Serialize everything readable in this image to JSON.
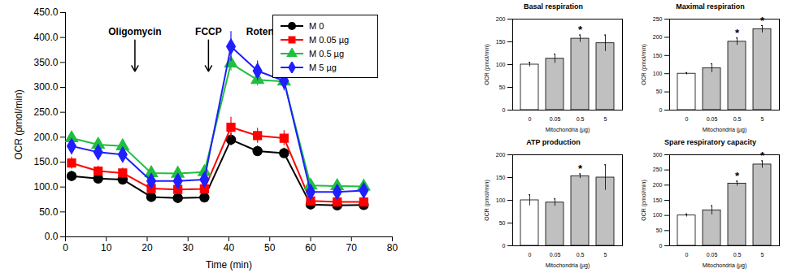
{
  "chart_data": [
    {
      "type": "line",
      "xlabel": "Time (min)",
      "ylabel": "OCR (pmol/min)",
      "x": [
        1.5,
        8,
        14,
        21,
        27.5,
        34,
        40.5,
        47,
        53.5,
        60,
        66.5,
        73
      ],
      "xlim": [
        0,
        80
      ],
      "xticks": [
        0,
        10,
        20,
        30,
        40,
        50,
        60,
        70,
        80
      ],
      "ylim": [
        0,
        450
      ],
      "yticks": [
        {
          "value": 0,
          "label": "0.0"
        },
        {
          "value": 50,
          "label": "50.0"
        },
        {
          "value": 100,
          "label": "100.0"
        },
        {
          "value": 150,
          "label": "150.0"
        },
        {
          "value": 200,
          "label": "200.0"
        },
        {
          "value": 250,
          "label": "250.0"
        },
        {
          "value": 300,
          "label": "300.0"
        },
        {
          "value": 350,
          "label": "350.0"
        },
        {
          "value": 400,
          "label": "400.0"
        },
        {
          "value": 450,
          "label": "450.0"
        }
      ],
      "legend": "top-right",
      "series": [
        {
          "name": "M 0",
          "color": "#000000",
          "marker": "circle",
          "values": [
            122,
            117,
            115,
            80,
            78,
            79,
            195,
            172,
            168,
            65,
            63,
            64
          ],
          "errors": [
            10,
            8,
            8,
            6,
            6,
            6,
            12,
            10,
            10,
            5,
            5,
            5
          ]
        },
        {
          "name": "M 0.05 µg",
          "color": "#ff0000",
          "marker": "square",
          "values": [
            148,
            132,
            128,
            97,
            95,
            96,
            220,
            203,
            198,
            72,
            70,
            70
          ],
          "errors": [
            12,
            10,
            10,
            8,
            8,
            8,
            20,
            15,
            15,
            6,
            6,
            6
          ]
        },
        {
          "name": "M 0.5 µg",
          "color": "#1fbf3f",
          "marker": "triangle",
          "values": [
            198,
            185,
            182,
            128,
            127,
            130,
            348,
            315,
            312,
            103,
            102,
            101
          ],
          "errors": [
            10,
            10,
            10,
            8,
            8,
            8,
            15,
            12,
            12,
            6,
            6,
            6
          ]
        },
        {
          "name": "M 5 µg",
          "color": "#1f1fff",
          "marker": "diamond",
          "values": [
            182,
            170,
            165,
            112,
            112,
            115,
            382,
            333,
            313,
            90,
            90,
            93
          ],
          "errors": [
            12,
            10,
            10,
            8,
            8,
            10,
            30,
            20,
            20,
            8,
            8,
            8
          ]
        }
      ],
      "annotations": [
        {
          "text": "Oligomycin",
          "x": 17,
          "y": [
            395,
            332
          ]
        },
        {
          "text": "FCCP",
          "x": 35,
          "y": [
            395,
            332
          ]
        },
        {
          "text": "Rotenone/Antimycin A",
          "x": 57,
          "y": [
            395,
            332
          ]
        }
      ]
    },
    {
      "type": "bar",
      "title": "Basal respiration",
      "xlabel": "Mitochondria (µg)",
      "ylabel": "OCR (pmol/min)",
      "categories": [
        "0",
        "0.05",
        "0.5",
        "5"
      ],
      "values": [
        100,
        113,
        157,
        147
      ],
      "errors": [
        5,
        10,
        8,
        18
      ],
      "colors": [
        "#ffffff",
        "#c0c0c0",
        "#c0c0c0",
        "#c0c0c0"
      ],
      "significance": [
        null,
        null,
        "*",
        null
      ],
      "ylim": [
        0,
        200
      ],
      "yticks": [
        0,
        50,
        100,
        150,
        200
      ]
    },
    {
      "type": "bar",
      "title": "Maximal respiration",
      "xlabel": "Mitochondria (µg)",
      "ylabel": "OCR (pmol/min)",
      "categories": [
        "0",
        "0.05",
        "0.5",
        "5"
      ],
      "values": [
        100,
        115,
        188,
        222
      ],
      "errors": [
        3,
        12,
        10,
        10
      ],
      "colors": [
        "#ffffff",
        "#c0c0c0",
        "#c0c0c0",
        "#c0c0c0"
      ],
      "significance": [
        null,
        null,
        "*",
        "*"
      ],
      "ylim": [
        0,
        250
      ],
      "yticks": [
        0,
        50,
        100,
        150,
        200,
        250
      ]
    },
    {
      "type": "bar",
      "title": "ATP production",
      "xlabel": "Mitochondria (µg)",
      "ylabel": "OCR (pmol/min)",
      "categories": [
        "0",
        "0.05",
        "0.5",
        "5"
      ],
      "values": [
        100,
        95,
        153,
        150
      ],
      "errors": [
        12,
        8,
        5,
        28
      ],
      "colors": [
        "#ffffff",
        "#c0c0c0",
        "#c0c0c0",
        "#c0c0c0"
      ],
      "significance": [
        null,
        null,
        "*",
        null
      ],
      "ylim": [
        0,
        200
      ],
      "yticks": [
        0,
        50,
        100,
        150,
        200
      ]
    },
    {
      "type": "bar",
      "title": "Spare respiratory capacity",
      "xlabel": "Mitochondria (µg)",
      "ylabel": "OCR (pmol/min)",
      "categories": [
        "0",
        "0.05",
        "0.5",
        "5"
      ],
      "values": [
        100,
        117,
        205,
        268
      ],
      "errors": [
        5,
        15,
        8,
        12
      ],
      "colors": [
        "#ffffff",
        "#c0c0c0",
        "#c0c0c0",
        "#c0c0c0"
      ],
      "significance": [
        null,
        null,
        "*",
        "*"
      ],
      "ylim": [
        0,
        300
      ],
      "yticks": [
        0,
        50,
        100,
        150,
        200,
        250,
        300
      ]
    }
  ]
}
